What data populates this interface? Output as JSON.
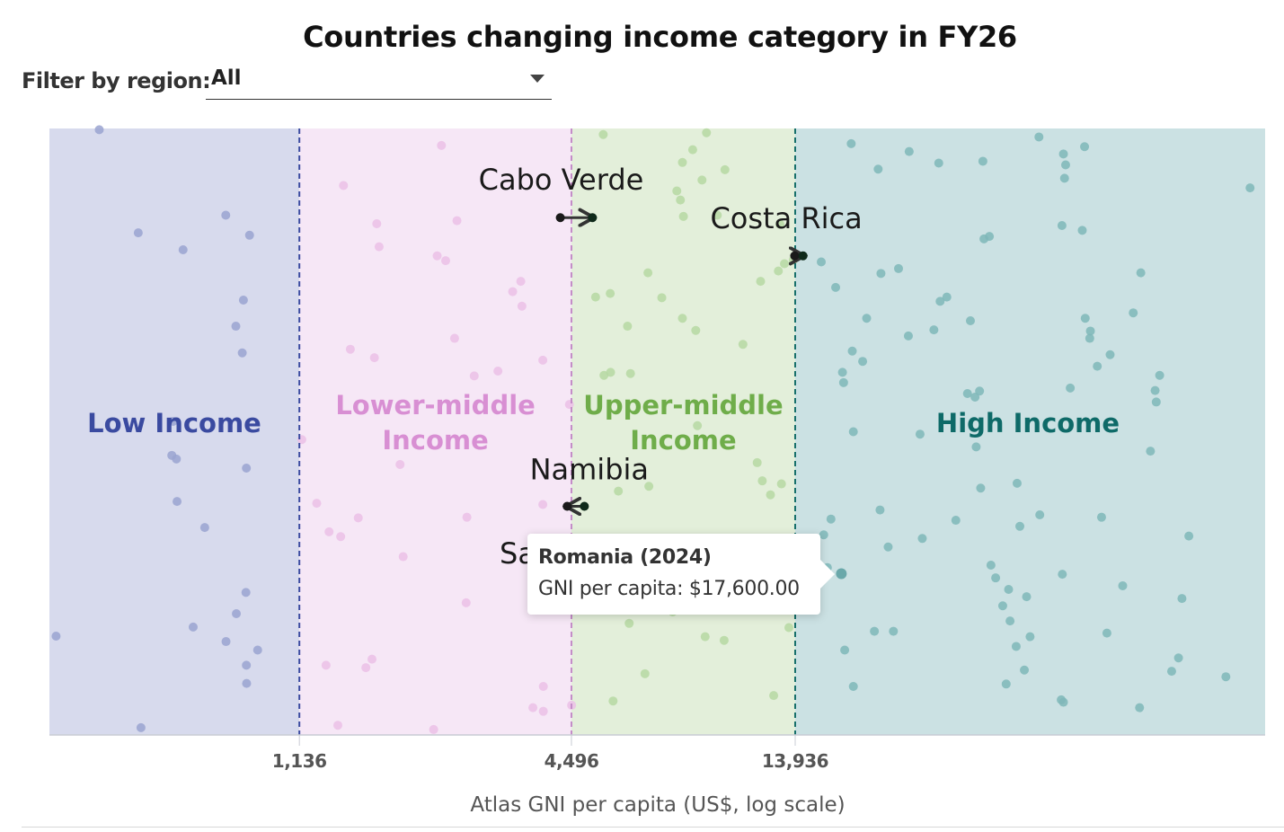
{
  "header": {
    "title": "Countries changing income category in FY26",
    "filter_label": "Filter by region:",
    "filter_value": "All"
  },
  "tooltip": {
    "title": "Romania (2024)",
    "body": "GNI per capita: $17,600.00"
  },
  "chart_data": {
    "type": "scatter",
    "title": "Countries changing income category in FY26",
    "xlabel": "Atlas GNI per capita (US$, log scale)",
    "ylabel": "",
    "x_scale": "log",
    "xlim": [
      321,
      150000
    ],
    "grid": false,
    "legend": "none",
    "thresholds": [
      {
        "value": 1136,
        "label": "1,136",
        "color": "#3b4ba0"
      },
      {
        "value": 4496,
        "label": "4,496",
        "color": "#c48cc8"
      },
      {
        "value": 13936,
        "label": "13,936",
        "color": "#156e6a"
      }
    ],
    "bands": [
      {
        "name": "Low Income",
        "label_lines": [
          "Low Income"
        ],
        "from": 321,
        "to": 1136,
        "fill": "#d7daed",
        "text_color": "#3a4aa0",
        "dot_color": "#9aa3d0"
      },
      {
        "name": "Lower-middle Income",
        "label_lines": [
          "Lower-middle",
          "Income"
        ],
        "from": 1136,
        "to": 4496,
        "fill": "#f6e7f6",
        "text_color": "#d88fd3",
        "dot_color": "#ebbfe6"
      },
      {
        "name": "Upper-middle Income",
        "label_lines": [
          "Upper-middle",
          "Income"
        ],
        "from": 4496,
        "to": 13936,
        "fill": "#e3efda",
        "text_color": "#6fad4a",
        "dot_color": "#b6d8a2"
      },
      {
        "name": "High Income",
        "label_lines": [
          "High Income"
        ],
        "from": 13936,
        "to": 150000,
        "fill": "#cbe1e3",
        "text_color": "#0e6a68",
        "dot_color": "#7fb7b8"
      }
    ],
    "changes": [
      {
        "country": "Cabo Verde",
        "from": 4250,
        "to": 5000,
        "direction": "up",
        "jitter": 0.147
      },
      {
        "country": "Costa Rica",
        "from": 13900,
        "to": 14500,
        "direction": "up",
        "jitter": 0.21
      },
      {
        "country": "Namibia",
        "from": 4400,
        "to": 4800,
        "direction": "down",
        "jitter": 0.623
      }
    ],
    "partial_label": "Sa",
    "points": {
      "Low Income": [
        [
          413,
          0.002
        ],
        [
          503,
          0.172
        ],
        [
          631,
          0.2
        ],
        [
          783,
          0.143
        ],
        [
          883,
          0.176
        ],
        [
          856,
          0.283
        ],
        [
          824,
          0.326
        ],
        [
          851,
          0.37
        ],
        [
          600,
          0.483
        ],
        [
          596,
          0.539
        ],
        [
          610,
          0.545
        ],
        [
          869,
          0.56
        ],
        [
          612,
          0.615
        ],
        [
          704,
          0.658
        ],
        [
          867,
          0.765
        ],
        [
          826,
          0.8
        ],
        [
          332,
          0.837
        ],
        [
          664,
          0.822
        ],
        [
          784,
          0.846
        ],
        [
          920,
          0.86
        ],
        [
          869,
          0.885
        ],
        [
          870,
          0.915
        ],
        [
          510,
          0.988
        ]
      ],
      "Lower-middle Income": [
        [
          2330,
          0.028
        ],
        [
          1420,
          0.094
        ],
        [
          1680,
          0.157
        ],
        [
          2520,
          0.152
        ],
        [
          1700,
          0.195
        ],
        [
          2280,
          0.21
        ],
        [
          2380,
          0.218
        ],
        [
          3480,
          0.252
        ],
        [
          3340,
          0.269
        ],
        [
          3500,
          0.293
        ],
        [
          2490,
          0.346
        ],
        [
          1470,
          0.364
        ],
        [
          1660,
          0.378
        ],
        [
          3890,
          0.382
        ],
        [
          3100,
          0.4
        ],
        [
          2750,
          0.408
        ],
        [
          4450,
          0.455
        ],
        [
          1150,
          0.513
        ],
        [
          1890,
          0.554
        ],
        [
          1240,
          0.618
        ],
        [
          1530,
          0.642
        ],
        [
          2650,
          0.641
        ],
        [
          3890,
          0.62
        ],
        [
          1400,
          0.673
        ],
        [
          1320,
          0.665
        ],
        [
          1920,
          0.706
        ],
        [
          3700,
          0.68
        ],
        [
          2640,
          0.782
        ],
        [
          3890,
          0.794
        ],
        [
          1300,
          0.885
        ],
        [
          1640,
          0.875
        ],
        [
          1590,
          0.889
        ],
        [
          3900,
          0.92
        ],
        [
          3700,
          0.955
        ],
        [
          3900,
          0.961
        ],
        [
          1380,
          0.984
        ],
        [
          2240,
          0.991
        ],
        [
          4500,
          0.951
        ]
      ],
      "Upper-middle Income": [
        [
          5280,
          0.01
        ],
        [
          8900,
          0.007
        ],
        [
          7880,
          0.056
        ],
        [
          8300,
          0.035
        ],
        [
          7660,
          0.103
        ],
        [
          8700,
          0.085
        ],
        [
          7800,
          0.118
        ],
        [
          9770,
          0.068
        ],
        [
          7920,
          0.145
        ],
        [
          9400,
          0.143
        ],
        [
          12900,
          0.158
        ],
        [
          7100,
          0.279
        ],
        [
          11700,
          0.252
        ],
        [
          5080,
          0.278
        ],
        [
          5470,
          0.272
        ],
        [
          6620,
          0.238
        ],
        [
          5970,
          0.326
        ],
        [
          7880,
          0.313
        ],
        [
          8430,
          0.333
        ],
        [
          10700,
          0.356
        ],
        [
          6060,
          0.404
        ],
        [
          5300,
          0.407
        ],
        [
          5480,
          0.402
        ],
        [
          12800,
          0.235
        ],
        [
          13200,
          0.223
        ],
        [
          8500,
          0.49
        ],
        [
          11500,
          0.551
        ],
        [
          5700,
          0.598
        ],
        [
          6650,
          0.59
        ],
        [
          11800,
          0.581
        ],
        [
          13000,
          0.586
        ],
        [
          12300,
          0.604
        ],
        [
          8400,
          0.724
        ],
        [
          7050,
          0.74
        ],
        [
          6450,
          0.781
        ],
        [
          7500,
          0.797
        ],
        [
          6020,
          0.816
        ],
        [
          8840,
          0.838
        ],
        [
          9730,
          0.844
        ],
        [
          13500,
          0.823
        ],
        [
          5550,
          0.944
        ],
        [
          6520,
          0.899
        ],
        [
          12500,
          0.935
        ],
        [
          13800,
          0.217
        ]
      ],
      "High Income": [
        [
          18500,
          0.025
        ],
        [
          24800,
          0.038
        ],
        [
          21200,
          0.067
        ],
        [
          28800,
          0.057
        ],
        [
          36000,
          0.054
        ],
        [
          36200,
          0.182
        ],
        [
          37200,
          0.178
        ],
        [
          15900,
          0.22
        ],
        [
          17100,
          0.262
        ],
        [
          23500,
          0.231
        ],
        [
          21500,
          0.239
        ],
        [
          30000,
          0.278
        ],
        [
          29000,
          0.285
        ],
        [
          20000,
          0.313
        ],
        [
          24700,
          0.342
        ],
        [
          28100,
          0.332
        ],
        [
          18600,
          0.367
        ],
        [
          19600,
          0.384
        ],
        [
          17700,
          0.402
        ],
        [
          17800,
          0.419
        ],
        [
          33800,
          0.317
        ],
        [
          47800,
          0.014
        ],
        [
          54100,
          0.042
        ],
        [
          60200,
          0.03
        ],
        [
          54700,
          0.06
        ],
        [
          54400,
          0.082
        ],
        [
          139000,
          0.098
        ],
        [
          53700,
          0.16
        ],
        [
          59500,
          0.168
        ],
        [
          80000,
          0.238
        ],
        [
          77000,
          0.304
        ],
        [
          60400,
          0.313
        ],
        [
          62000,
          0.334
        ],
        [
          61800,
          0.346
        ],
        [
          64200,
          0.392
        ],
        [
          68500,
          0.373
        ],
        [
          88000,
          0.407
        ],
        [
          86000,
          0.432
        ],
        [
          86500,
          0.451
        ],
        [
          56000,
          0.428
        ],
        [
          35400,
          0.433
        ],
        [
          34600,
          0.443
        ],
        [
          84000,
          0.532
        ],
        [
          33300,
          0.437
        ],
        [
          18700,
          0.5
        ],
        [
          26200,
          0.504
        ],
        [
          34800,
          0.525
        ],
        [
          21400,
          0.629
        ],
        [
          31400,
          0.646
        ],
        [
          35600,
          0.593
        ],
        [
          42800,
          0.585
        ],
        [
          16100,
          0.67
        ],
        [
          22300,
          0.69
        ],
        [
          26500,
          0.676
        ],
        [
          43400,
          0.656
        ],
        [
          48000,
          0.637
        ],
        [
          38400,
          0.741
        ],
        [
          37500,
          0.72
        ],
        [
          41000,
          0.76
        ],
        [
          39800,
          0.787
        ],
        [
          41300,
          0.812
        ],
        [
          44900,
          0.772
        ],
        [
          42600,
          0.854
        ],
        [
          45700,
          0.838
        ],
        [
          40500,
          0.916
        ],
        [
          44400,
          0.893
        ],
        [
          53800,
          0.735
        ],
        [
          65600,
          0.641
        ],
        [
          73000,
          0.754
        ],
        [
          67400,
          0.832
        ],
        [
          102000,
          0.672
        ],
        [
          98500,
          0.775
        ],
        [
          96800,
          0.873
        ],
        [
          93500,
          0.895
        ],
        [
          123000,
          0.904
        ],
        [
          53500,
          0.942
        ],
        [
          54100,
          0.946
        ],
        [
          79500,
          0.955
        ],
        [
          16700,
          0.644
        ],
        [
          15400,
          0.702
        ],
        [
          16400,
          0.724
        ],
        [
          14600,
          0.782
        ],
        [
          17900,
          0.86
        ],
        [
          20800,
          0.829
        ],
        [
          18700,
          0.92
        ],
        [
          22900,
          0.829
        ],
        [
          17600,
          0.734
        ]
      ]
    }
  }
}
